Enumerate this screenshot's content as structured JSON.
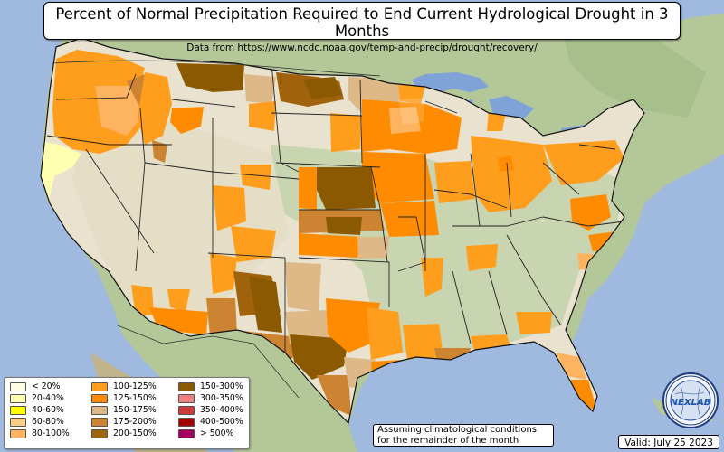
{
  "map": {
    "title": "Percent of Normal Precipitation Required to End Current Hydrological Drought in 3 Months",
    "subtitle": "Data from https://www.ncdc.noaa.gov/temp-and-precip/drought/recovery/",
    "note": [
      "Assuming climatological conditions",
      "for the remainder of the month"
    ],
    "valid": "Valid: July 25 2023",
    "logo_text": "NEXLAB"
  },
  "legend": [
    {
      "label": "< 20%",
      "color": "#fffde4"
    },
    {
      "label": "20-40%",
      "color": "#ffffb0"
    },
    {
      "label": "40-60%",
      "color": "#ffff00"
    },
    {
      "label": "60-80%",
      "color": "#fbcc84"
    },
    {
      "label": "80-100%",
      "color": "#fdb35f"
    },
    {
      "label": "100-125%",
      "color": "#ff9d1d"
    },
    {
      "label": "125-150%",
      "color": "#ff8c00"
    },
    {
      "label": "150-175%",
      "color": "#deb887"
    },
    {
      "label": "175-200%",
      "color": "#cd8432"
    },
    {
      "label": "200-150%",
      "color": "#a0630b"
    },
    {
      "label": "150-300%",
      "color": "#8b5a00"
    },
    {
      "label": "300-350%",
      "color": "#f08080"
    },
    {
      "label": "350-400%",
      "color": "#cd3a3a"
    },
    {
      "label": "400-500%",
      "color": "#a30000"
    },
    {
      "label": "> 500%",
      "color": "#a6005c"
    }
  ]
}
